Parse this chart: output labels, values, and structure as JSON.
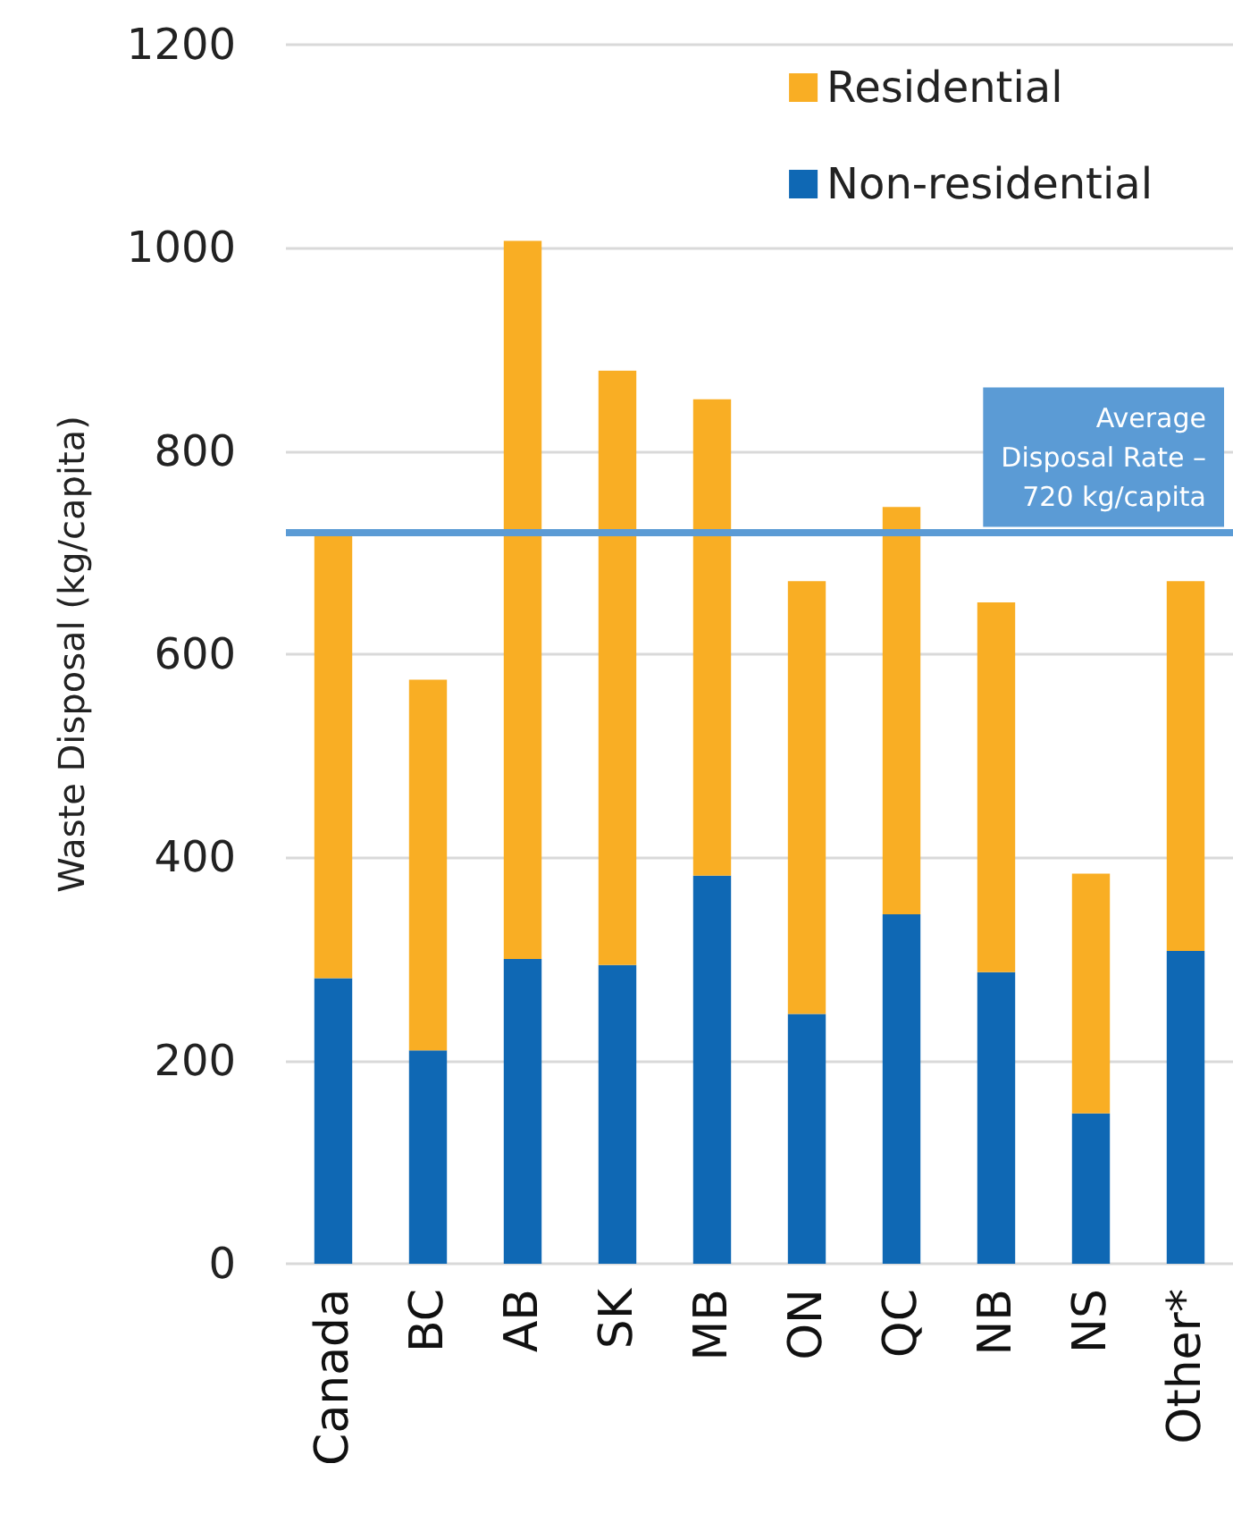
{
  "chart_data": {
    "type": "bar",
    "ylabel": "Waste Disposal (kg/capita)",
    "categories": [
      "Canada",
      "BC",
      "AB",
      "SK",
      "MB",
      "ON",
      "QC",
      "NB",
      "NS",
      "Other*"
    ],
    "series": [
      {
        "name": "Non-residential",
        "color": "#0f68b4",
        "values": [
          281,
          210,
          300,
          294,
          382,
          246,
          344,
          287,
          148,
          308
        ]
      },
      {
        "name": "Residential",
        "color": "#f9ae24",
        "values": [
          439,
          365,
          707,
          585,
          469,
          426,
          401,
          364,
          236,
          364
        ]
      }
    ],
    "stacked": true,
    "ylim": [
      0,
      1200
    ],
    "yticks": [
      0,
      200,
      400,
      600,
      800,
      1000,
      1200
    ],
    "grid": "y",
    "legend": "top right",
    "ref_lines": [
      {
        "axis": "y",
        "value": 720,
        "label": "Average\nDisposal Rate –\n720 kg/capita",
        "color": "#5b9bd5"
      }
    ]
  }
}
